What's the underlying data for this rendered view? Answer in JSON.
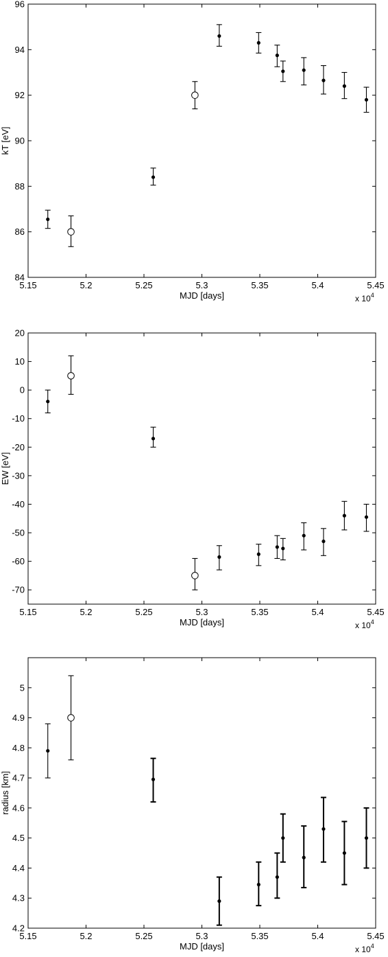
{
  "chart_data": [
    {
      "type": "scatter",
      "title": "",
      "xlabel": "MJD [days]",
      "ylabel": "kT [eV]",
      "x_multiplier_label": "x 10",
      "x_multiplier_exp": "4",
      "xlim": [
        5.15,
        5.45
      ],
      "ylim": [
        84,
        96
      ],
      "xticks": [
        "5.15",
        "5.2",
        "5.25",
        "5.3",
        "5.35",
        "5.4",
        "5.45"
      ],
      "yticks": [
        "84",
        "86",
        "88",
        "90",
        "92",
        "94",
        "96"
      ],
      "grid": false,
      "points": [
        {
          "x": 5.167,
          "y": 86.55,
          "lo": 86.15,
          "hi": 86.95,
          "marker": "dot"
        },
        {
          "x": 5.187,
          "y": 86.0,
          "lo": 85.35,
          "hi": 86.7,
          "marker": "open"
        },
        {
          "x": 5.258,
          "y": 88.4,
          "lo": 88.05,
          "hi": 88.8,
          "marker": "dot"
        },
        {
          "x": 5.294,
          "y": 92.0,
          "lo": 91.4,
          "hi": 92.6,
          "marker": "open"
        },
        {
          "x": 5.315,
          "y": 94.6,
          "lo": 94.15,
          "hi": 95.1,
          "marker": "dot"
        },
        {
          "x": 5.349,
          "y": 94.3,
          "lo": 93.85,
          "hi": 94.75,
          "marker": "dot"
        },
        {
          "x": 5.365,
          "y": 93.75,
          "lo": 93.25,
          "hi": 94.2,
          "marker": "dot"
        },
        {
          "x": 5.37,
          "y": 93.05,
          "lo": 92.6,
          "hi": 93.5,
          "marker": "dot"
        },
        {
          "x": 5.388,
          "y": 93.1,
          "lo": 92.45,
          "hi": 93.65,
          "marker": "dot"
        },
        {
          "x": 5.405,
          "y": 92.65,
          "lo": 92.05,
          "hi": 93.3,
          "marker": "dot"
        },
        {
          "x": 5.423,
          "y": 92.4,
          "lo": 91.85,
          "hi": 93.0,
          "marker": "dot"
        },
        {
          "x": 5.442,
          "y": 91.8,
          "lo": 91.25,
          "hi": 92.35,
          "marker": "dot"
        }
      ]
    },
    {
      "type": "scatter",
      "title": "",
      "xlabel": "MJD [days]",
      "ylabel": "EW [eV]",
      "x_multiplier_label": "x 10",
      "x_multiplier_exp": "4",
      "xlim": [
        5.15,
        5.45
      ],
      "ylim": [
        -75,
        20
      ],
      "xticks": [
        "5.15",
        "5.2",
        "5.25",
        "5.3",
        "5.35",
        "5.4",
        "5.45"
      ],
      "yticks": [
        "20",
        "10",
        "0",
        "-10",
        "-20",
        "-30",
        "-40",
        "-50",
        "-60",
        "-70"
      ],
      "ytick_values": [
        20,
        10,
        0,
        -10,
        -20,
        -30,
        -40,
        -50,
        -60,
        -70
      ],
      "grid": false,
      "points": [
        {
          "x": 5.167,
          "y": -4.0,
          "lo": -8.0,
          "hi": 0.0,
          "marker": "dot"
        },
        {
          "x": 5.187,
          "y": 5.0,
          "lo": -1.5,
          "hi": 12.0,
          "marker": "open"
        },
        {
          "x": 5.258,
          "y": -17.0,
          "lo": -20.0,
          "hi": -13.0,
          "marker": "dot"
        },
        {
          "x": 5.294,
          "y": -65.0,
          "lo": -70.0,
          "hi": -59.0,
          "marker": "open"
        },
        {
          "x": 5.315,
          "y": -58.5,
          "lo": -63.0,
          "hi": -54.5,
          "marker": "dot"
        },
        {
          "x": 5.349,
          "y": -57.5,
          "lo": -61.5,
          "hi": -54.0,
          "marker": "dot"
        },
        {
          "x": 5.365,
          "y": -55.0,
          "lo": -59.0,
          "hi": -51.0,
          "marker": "dot"
        },
        {
          "x": 5.37,
          "y": -55.5,
          "lo": -59.5,
          "hi": -52.0,
          "marker": "dot"
        },
        {
          "x": 5.388,
          "y": -51.0,
          "lo": -56.0,
          "hi": -46.5,
          "marker": "dot"
        },
        {
          "x": 5.405,
          "y": -53.0,
          "lo": -58.0,
          "hi": -48.5,
          "marker": "dot"
        },
        {
          "x": 5.423,
          "y": -44.0,
          "lo": -49.0,
          "hi": -39.0,
          "marker": "dot"
        },
        {
          "x": 5.442,
          "y": -44.5,
          "lo": -49.5,
          "hi": -40.0,
          "marker": "dot"
        }
      ]
    },
    {
      "type": "scatter",
      "title": "",
      "xlabel": "MJD [days]",
      "ylabel": "radius [km]",
      "x_multiplier_label": "x 10",
      "x_multiplier_exp": "4",
      "xlim": [
        5.15,
        5.45
      ],
      "ylim": [
        4.2,
        5.1
      ],
      "xticks": [
        "5.15",
        "5.2",
        "5.25",
        "5.3",
        "5.35",
        "5.4",
        "5.45"
      ],
      "yticks": [
        "4.2",
        "4.3",
        "4.4",
        "4.5",
        "4.6",
        "4.7",
        "4.8",
        "4.9",
        "5"
      ],
      "grid": false,
      "points": [
        {
          "x": 5.167,
          "y": 4.79,
          "lo": 4.7,
          "hi": 4.88,
          "marker": "dot"
        },
        {
          "x": 5.187,
          "y": 4.9,
          "lo": 4.76,
          "hi": 5.04,
          "marker": "open"
        },
        {
          "x": 5.258,
          "y": 4.695,
          "lo": 4.62,
          "hi": 4.765,
          "marker": "dot"
        },
        {
          "x": 5.315,
          "y": 4.29,
          "lo": 4.21,
          "hi": 4.37,
          "marker": "dot"
        },
        {
          "x": 5.349,
          "y": 4.345,
          "lo": 4.275,
          "hi": 4.42,
          "marker": "dot"
        },
        {
          "x": 5.365,
          "y": 4.37,
          "lo": 4.3,
          "hi": 4.45,
          "marker": "dot"
        },
        {
          "x": 5.37,
          "y": 4.5,
          "lo": 4.42,
          "hi": 4.58,
          "marker": "dot"
        },
        {
          "x": 5.388,
          "y": 4.435,
          "lo": 4.335,
          "hi": 4.54,
          "marker": "dot"
        },
        {
          "x": 5.405,
          "y": 4.53,
          "lo": 4.42,
          "hi": 4.635,
          "marker": "dot"
        },
        {
          "x": 5.423,
          "y": 4.45,
          "lo": 4.345,
          "hi": 4.555,
          "marker": "dot"
        },
        {
          "x": 5.442,
          "y": 4.5,
          "lo": 4.4,
          "hi": 4.6,
          "marker": "dot"
        }
      ]
    }
  ]
}
